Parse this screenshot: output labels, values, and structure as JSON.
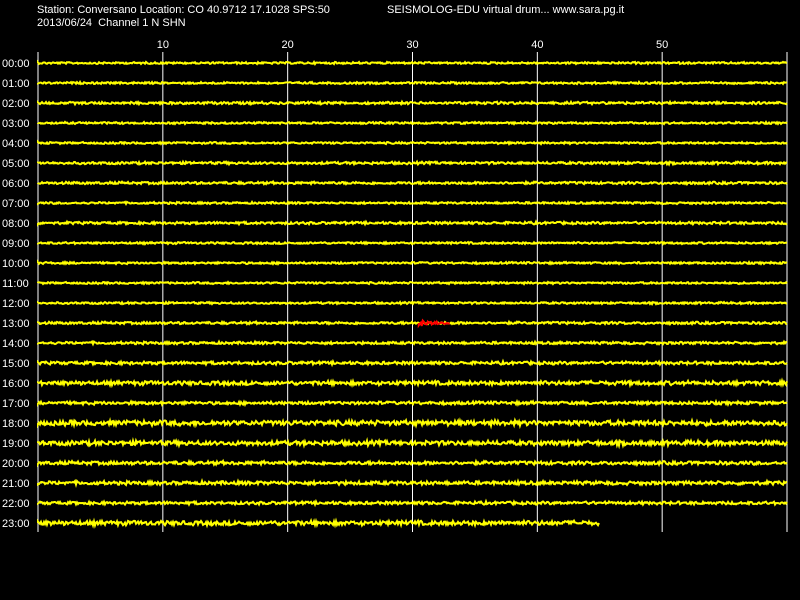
{
  "header": {
    "station_line": "Station: Conversano Location: CO 40.9712 17.1028 SPS:50",
    "app_title": "SEISMOLOG-EDU virtual drum... www.sara.pg.it",
    "date_channel": "2013/06/24  Channel 1 N SHN"
  },
  "colors": {
    "background": "#000000",
    "trace": "#ffff00",
    "event": "#ff0000",
    "grid": "#ffffff",
    "text": "#ffffff"
  },
  "chart_data": {
    "type": "line",
    "xlabel": "",
    "ylabel": "",
    "xlim": [
      0,
      60
    ],
    "x_ticks": [
      10,
      20,
      30,
      40,
      50
    ],
    "x_tick_labels": [
      "10",
      "20",
      "30",
      "40",
      "50"
    ],
    "hour_labels": [
      "00:00",
      "01:00",
      "02:00",
      "03:00",
      "04:00",
      "05:00",
      "06:00",
      "07:00",
      "08:00",
      "09:00",
      "10:00",
      "11:00",
      "12:00",
      "13:00",
      "14:00",
      "15:00",
      "16:00",
      "17:00",
      "18:00",
      "19:00",
      "20:00",
      "21:00",
      "22:00",
      "23:00"
    ],
    "last_trace_end_minute": 45,
    "event": {
      "hour_index": 13,
      "start_minute": 30.5,
      "end_minute": 33
    },
    "noise_amplitude_by_hour": [
      0.4,
      0.4,
      0.5,
      0.4,
      0.4,
      0.5,
      0.5,
      0.4,
      0.5,
      0.4,
      0.4,
      0.4,
      0.4,
      0.5,
      0.5,
      0.6,
      0.8,
      0.6,
      1.0,
      0.9,
      0.7,
      0.7,
      0.6,
      0.9
    ]
  }
}
